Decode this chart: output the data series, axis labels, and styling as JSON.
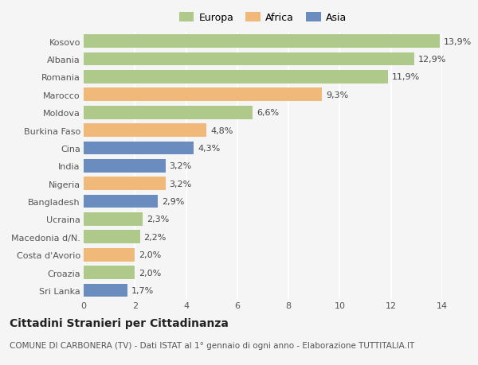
{
  "countries": [
    "Kosovo",
    "Albania",
    "Romania",
    "Marocco",
    "Moldova",
    "Burkina Faso",
    "Cina",
    "India",
    "Nigeria",
    "Bangladesh",
    "Ucraina",
    "Macedonia d/N.",
    "Costa d'Avorio",
    "Croazia",
    "Sri Lanka"
  ],
  "values": [
    13.9,
    12.9,
    11.9,
    9.3,
    6.6,
    4.8,
    4.3,
    3.2,
    3.2,
    2.9,
    2.3,
    2.2,
    2.0,
    2.0,
    1.7
  ],
  "labels": [
    "13,9%",
    "12,9%",
    "11,9%",
    "9,3%",
    "6,6%",
    "4,8%",
    "4,3%",
    "3,2%",
    "3,2%",
    "2,9%",
    "2,3%",
    "2,2%",
    "2,0%",
    "2,0%",
    "1,7%"
  ],
  "continents": [
    "Europa",
    "Europa",
    "Europa",
    "Africa",
    "Europa",
    "Africa",
    "Asia",
    "Asia",
    "Africa",
    "Asia",
    "Europa",
    "Europa",
    "Africa",
    "Europa",
    "Asia"
  ],
  "continent_colors": {
    "Europa": "#aec98a",
    "Africa": "#f0b97a",
    "Asia": "#6b8cbf"
  },
  "legend_labels": [
    "Europa",
    "Africa",
    "Asia"
  ],
  "legend_colors": [
    "#aec98a",
    "#f0b97a",
    "#6b8cbf"
  ],
  "xlim": [
    0,
    14
  ],
  "xticks": [
    0,
    2,
    4,
    6,
    8,
    10,
    12,
    14
  ],
  "title": "Cittadini Stranieri per Cittadinanza",
  "subtitle": "COMUNE DI CARBONERA (TV) - Dati ISTAT al 1° gennaio di ogni anno - Elaborazione TUTTITALIA.IT",
  "background_color": "#f5f5f5",
  "grid_color": "#ffffff",
  "bar_height": 0.75,
  "label_fontsize": 8,
  "tick_fontsize": 8,
  "title_fontsize": 10,
  "subtitle_fontsize": 7.5
}
